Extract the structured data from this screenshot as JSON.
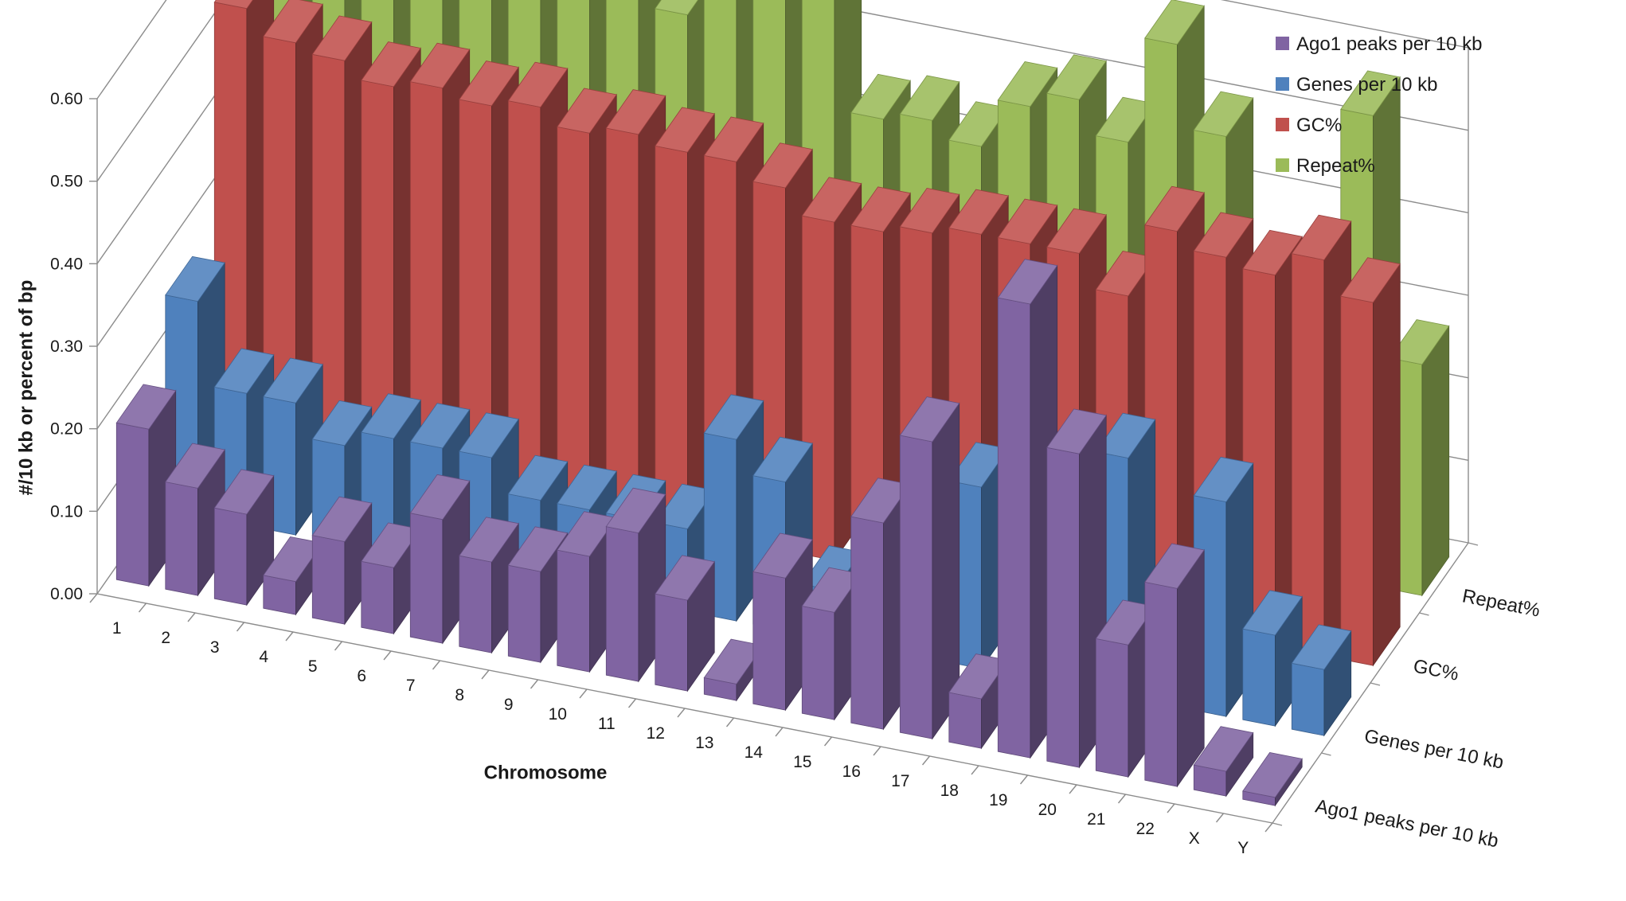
{
  "chart_data": {
    "type": "bar",
    "subtype": "3d-clustered-depth",
    "title": "",
    "xlabel": "Chromosome",
    "ylabel": "#/10 kb or percent of bp",
    "ylim": [
      0,
      0.6
    ],
    "yticks": [
      "0.00",
      "0.10",
      "0.20",
      "0.30",
      "0.40",
      "0.50",
      "0.60"
    ],
    "grid": true,
    "legend_position": "top-right",
    "categories": [
      "1",
      "2",
      "3",
      "4",
      "5",
      "6",
      "7",
      "8",
      "9",
      "10",
      "11",
      "12",
      "13",
      "14",
      "15",
      "16",
      "17",
      "18",
      "19",
      "20",
      "21",
      "22",
      "X",
      "Y"
    ],
    "series": [
      {
        "name": "Ago1 peaks per 10 kb",
        "color": "#8064a2",
        "values": [
          0.19,
          0.13,
          0.11,
          0.04,
          0.1,
          0.08,
          0.15,
          0.11,
          0.11,
          0.14,
          0.18,
          0.11,
          0.02,
          0.16,
          0.13,
          0.25,
          0.36,
          0.06,
          0.55,
          0.38,
          0.16,
          0.24,
          0.03,
          0.01
        ]
      },
      {
        "name": "Genes per 10 kb",
        "color": "#4f81bd",
        "values": [
          0.26,
          0.16,
          0.16,
          0.12,
          0.14,
          0.14,
          0.14,
          0.1,
          0.1,
          0.1,
          0.1,
          0.22,
          0.18,
          0.06,
          0.15,
          0.18,
          0.22,
          0.2,
          0.12,
          0.29,
          0.13,
          0.26,
          0.11,
          0.08
        ]
      },
      {
        "name": "GC%",
        "color": "#c0504d",
        "values": [
          0.53,
          0.5,
          0.49,
          0.47,
          0.48,
          0.47,
          0.48,
          0.46,
          0.47,
          0.46,
          0.46,
          0.44,
          0.41,
          0.41,
          0.42,
          0.43,
          0.43,
          0.43,
          0.39,
          0.48,
          0.46,
          0.45,
          0.48,
          0.44
        ]
      },
      {
        "name": "Repeat%",
        "color": "#9bbb59",
        "values": [
          0.61,
          0.62,
          0.63,
          0.63,
          0.62,
          0.61,
          0.62,
          0.62,
          0.53,
          0.58,
          0.59,
          0.59,
          0.45,
          0.46,
          0.44,
          0.5,
          0.52,
          0.48,
          0.61,
          0.51,
          0.34,
          0.33,
          0.57,
          0.28
        ]
      }
    ]
  }
}
